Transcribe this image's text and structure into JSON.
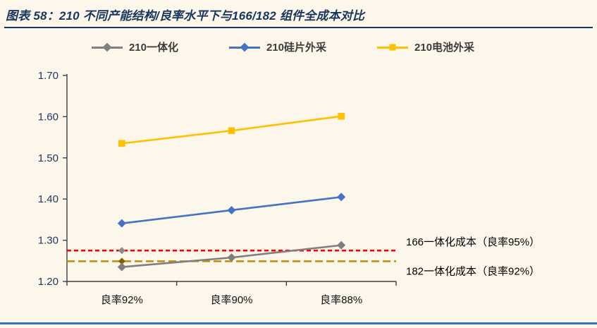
{
  "title": "图表 58：210 不同产能结构/良率水平下与166/182 组件全成本对比",
  "colors": {
    "background": "#FCF7EA",
    "title": "#17365D",
    "title_rule": "#17365D",
    "bottom_rule": "#2E75B6",
    "axis": "#3F3F3F"
  },
  "chart_data": {
    "type": "line",
    "title": "210 不同产能结构/良率水平下与166/182 组件全成本对比",
    "categories": [
      "良率92%",
      "良率90%",
      "良率88%"
    ],
    "series": [
      {
        "name": "210一体化",
        "color": "#7F7F7F",
        "marker": "diamond",
        "values": [
          1.235,
          1.258,
          1.288
        ]
      },
      {
        "name": "210硅片外采",
        "color": "#4472C4",
        "marker": "diamond",
        "values": [
          1.341,
          1.373,
          1.405
        ]
      },
      {
        "name": "210电池外采",
        "color": "#FFC000",
        "marker": "square",
        "values": [
          1.535,
          1.566,
          1.601
        ]
      }
    ],
    "reference_lines": [
      {
        "label": "166一体化成本（良率95%）",
        "value": 1.275,
        "color": "#FF0000",
        "dash": "6 4",
        "marker_color": "#8C8C8C",
        "label_offset": -7
      },
      {
        "label": "182一体化成本（良率92%）",
        "value": 1.249,
        "color": "#BF8F00",
        "dash": "11 5",
        "marker_color": "#7F6000",
        "label_offset": 19
      }
    ],
    "ylim": [
      1.2,
      1.7
    ],
    "yticks": [
      1.2,
      1.3,
      1.4,
      1.5,
      1.6,
      1.7
    ],
    "ytick_labels": [
      "1.20",
      "1.30",
      "1.40",
      "1.50",
      "1.60",
      "1.70"
    ],
    "legend_position": "top",
    "grid": false,
    "xlabel": "",
    "ylabel": ""
  }
}
